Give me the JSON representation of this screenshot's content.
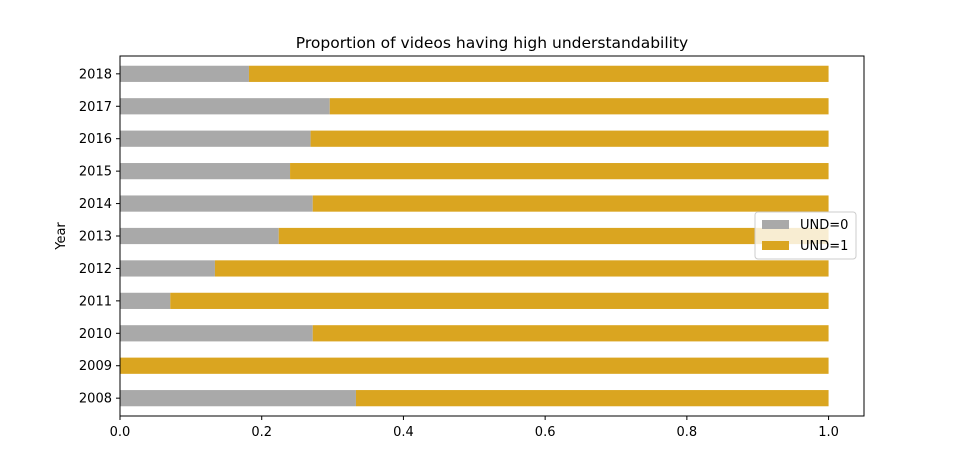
{
  "chart_data": {
    "type": "bar",
    "orientation": "horizontal",
    "stacked": true,
    "title": "Proportion of videos having high understandability",
    "xlabel": "",
    "ylabel": "Year",
    "categories": [
      "2008",
      "2009",
      "2010",
      "2011",
      "2012",
      "2013",
      "2014",
      "2015",
      "2016",
      "2017",
      "2018"
    ],
    "series": [
      {
        "name": "UND=0",
        "color": "#a9a9a9",
        "values": [
          0.333,
          0.0,
          0.272,
          0.071,
          0.134,
          0.224,
          0.272,
          0.24,
          0.269,
          0.296,
          0.182
        ]
      },
      {
        "name": "UND=1",
        "color": "#daa520",
        "values": [
          0.667,
          1.0,
          0.728,
          0.929,
          0.866,
          0.776,
          0.728,
          0.76,
          0.731,
          0.704,
          0.818
        ]
      }
    ],
    "xlim": [
      0.0,
      1.05
    ],
    "xticks": [
      "0.0",
      "0.2",
      "0.4",
      "0.6",
      "0.8",
      "1.0"
    ],
    "grid": false,
    "legend_position": "right"
  }
}
